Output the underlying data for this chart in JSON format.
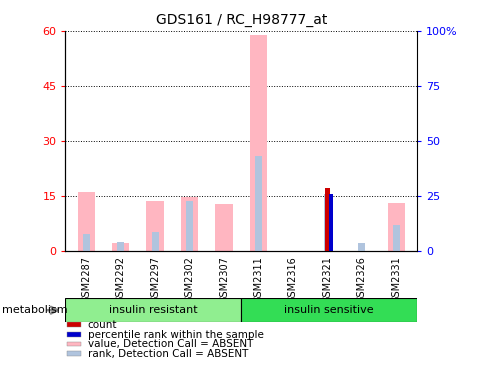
{
  "title": "GDS161 / RC_H98777_at",
  "samples": [
    "GSM2287",
    "GSM2292",
    "GSM2297",
    "GSM2302",
    "GSM2307",
    "GSM2311",
    "GSM2316",
    "GSM2321",
    "GSM2326",
    "GSM2331"
  ],
  "value_absent": [
    16.0,
    2.0,
    13.5,
    14.8,
    12.8,
    59.0,
    0.0,
    0.0,
    0.0,
    13.0
  ],
  "rank_absent": [
    4.5,
    2.5,
    5.0,
    13.5,
    0.0,
    26.0,
    0.0,
    15.5,
    2.0,
    7.0
  ],
  "count_val": [
    0.0,
    0.0,
    0.0,
    0.0,
    0.0,
    0.0,
    0.0,
    17.0,
    0.0,
    0.0
  ],
  "percentile_val": [
    0.0,
    0.0,
    0.0,
    0.0,
    0.0,
    0.0,
    0.0,
    15.5,
    0.0,
    0.0
  ],
  "color_value_absent": "#ffb6c1",
  "color_rank_absent": "#b0c4de",
  "color_count": "#cc0000",
  "color_percentile": "#0000cc",
  "group1_color": "#90ee90",
  "group2_color": "#33dd55",
  "left_yticks": [
    0,
    15,
    30,
    45,
    60
  ],
  "right_yticks": [
    0,
    25,
    50,
    75,
    100
  ],
  "ylim": [
    0,
    60
  ],
  "right_ylim": [
    0,
    100
  ],
  "bar_width": 0.5,
  "n_samples": 10,
  "n_group1": 5,
  "n_group2": 5
}
